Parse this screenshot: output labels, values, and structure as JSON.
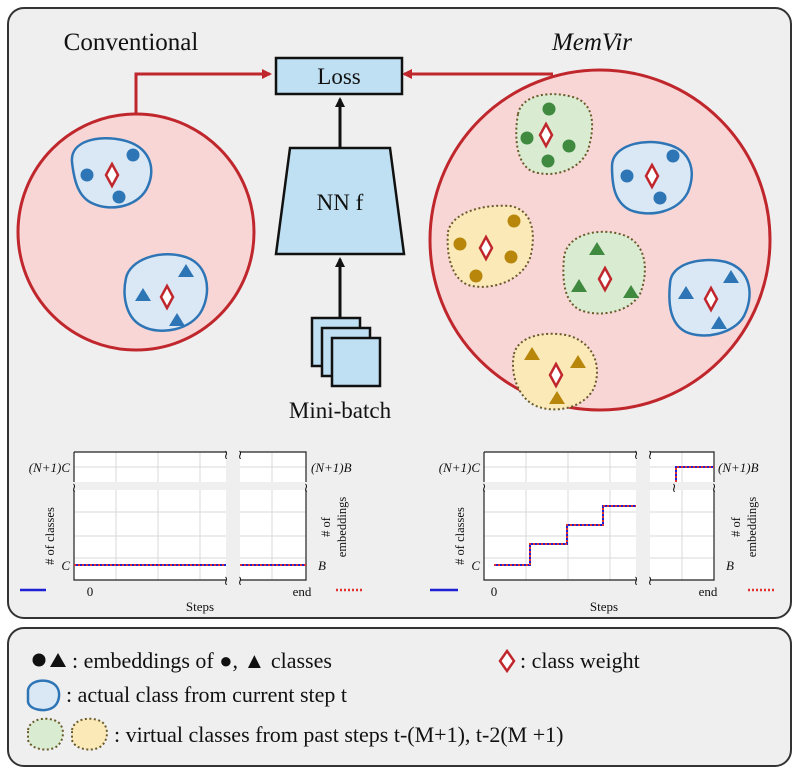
{
  "top_panel": {
    "conventional_title": "Conventional",
    "memvir_title": "MemVir",
    "loss_label": "Loss",
    "nn_label": "NN f",
    "minibatch_label": "Mini-batch"
  },
  "chart_left": {
    "ylabel": "# of classes",
    "y2label": "# of embeddings",
    "ytick_top": "(N+1)C",
    "ytick_bottom": "C",
    "y2tick_top": "(N+1)B",
    "y2tick_bottom": "B",
    "xtick_start": "0",
    "xtick_end": "end",
    "xlabel": "Steps"
  },
  "chart_right": {
    "ylabel": "# of classes",
    "y2label": "# of embeddings",
    "ytick_top": "(N+1)C",
    "ytick_bottom": "C",
    "y2tick_top": "(N+1)B",
    "y2tick_bottom": "B",
    "xtick_start": "0",
    "xtick_end": "end",
    "xlabel": "Steps"
  },
  "chart_data": [
    {
      "type": "line",
      "xlabel": "Steps",
      "ylabel": "# of classes",
      "series": [
        {
          "name": "# of classes",
          "color": "#1f1fd6",
          "style": "solid",
          "x": [
            0,
            1
          ],
          "y": [
            "C",
            "C"
          ]
        },
        {
          "name": "# of embeddings",
          "color": "#e03030",
          "style": "dotted",
          "x": [
            0,
            1
          ],
          "y": [
            "B",
            "B"
          ]
        }
      ]
    },
    {
      "type": "line",
      "xlabel": "Steps",
      "ylabel": "# of classes",
      "series": [
        {
          "name": "# of classes",
          "color": "#1f1fd6",
          "style": "solid",
          "x": [
            0,
            1,
            1,
            2,
            2,
            3,
            3,
            4
          ],
          "y": [
            "C",
            "C",
            "2C",
            "2C",
            "3C",
            "3C",
            "4C",
            "(N+1)C"
          ]
        },
        {
          "name": "# of embeddings",
          "color": "#e03030",
          "style": "dotted",
          "x": [
            0,
            1,
            1,
            2,
            2,
            3,
            3,
            4
          ],
          "y": [
            "B",
            "B",
            "2B",
            "2B",
            "3B",
            "3B",
            "4B",
            "(N+1)B"
          ]
        }
      ]
    }
  ],
  "legend": {
    "line1_symbols": "● ▲",
    "line1_text": ": embeddings of ●, ▲ classes",
    "class_weight_text": ": class weight",
    "line2_text": ": actual class from current step t",
    "line3_text": ": virtual classes from past steps t-(M+1), t-2(M +1)"
  },
  "colors": {
    "panel_bg": "#efefef",
    "panel_border": "#333333",
    "circle_fill": "#f8d6d6",
    "circle_stroke": "#c0272d",
    "arrow_red": "#c0272d",
    "box_fill": "#bfe0f2",
    "blue_marker": "#2e75b6",
    "blue_blob_fill": "#dae8f5",
    "green_marker": "#3f8a3f",
    "green_blob_fill": "#d9ecd2",
    "gold_marker": "#b8860b",
    "gold_blob_fill": "#fbeab8",
    "diamond": "#c0272d"
  },
  "icons": [
    "dot-icon",
    "triangle-icon",
    "diamond-icon",
    "blue-blob-icon",
    "green-blob-icon",
    "yellow-blob-icon"
  ]
}
